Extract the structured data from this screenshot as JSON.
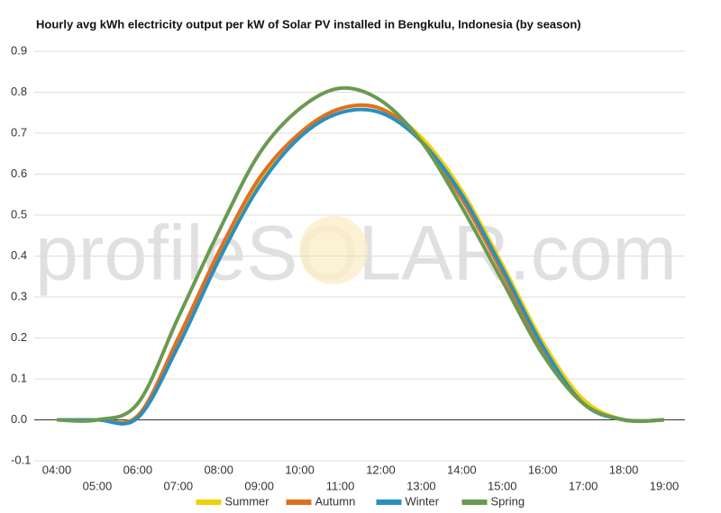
{
  "chart_data": {
    "type": "line",
    "title": "Hourly avg kWh electricity output per kW of Solar PV installed in Bengkulu, Indonesia (by season)",
    "watermark": "profileSOLAR.com",
    "categories": [
      "04:00",
      "05:00",
      "06:00",
      "07:00",
      "08:00",
      "09:00",
      "10:00",
      "11:00",
      "12:00",
      "13:00",
      "14:00",
      "15:00",
      "16:00",
      "17:00",
      "18:00",
      "19:00"
    ],
    "series": [
      {
        "name": "Summer",
        "color": "#f2cf00",
        "values": [
          0,
          0,
          0.01,
          0.19,
          0.4,
          0.58,
          0.7,
          0.76,
          0.76,
          0.69,
          0.56,
          0.38,
          0.19,
          0.05,
          0,
          0
        ]
      },
      {
        "name": "Autumn",
        "color": "#e07020",
        "values": [
          0,
          0,
          0.01,
          0.2,
          0.41,
          0.59,
          0.7,
          0.76,
          0.76,
          0.68,
          0.54,
          0.36,
          0.17,
          0.04,
          0,
          0
        ]
      },
      {
        "name": "Winter",
        "color": "#2b8fc0",
        "values": [
          0,
          0,
          0.005,
          0.18,
          0.39,
          0.57,
          0.69,
          0.75,
          0.75,
          0.68,
          0.55,
          0.37,
          0.18,
          0.04,
          0,
          0
        ]
      },
      {
        "name": "Spring",
        "color": "#6a9a50",
        "values": [
          0,
          0,
          0.04,
          0.25,
          0.46,
          0.65,
          0.76,
          0.81,
          0.78,
          0.68,
          0.52,
          0.34,
          0.16,
          0.04,
          0,
          0
        ]
      }
    ],
    "ylim": [
      -0.1,
      0.9
    ],
    "yticks": [
      -0.1,
      {
        "value": 0,
        "label": "0.0"
      },
      0.1,
      0.2,
      0.3,
      0.4,
      0.5,
      0.6,
      0.7,
      0.8,
      0.9
    ],
    "grid": true,
    "legend": "bottom"
  }
}
